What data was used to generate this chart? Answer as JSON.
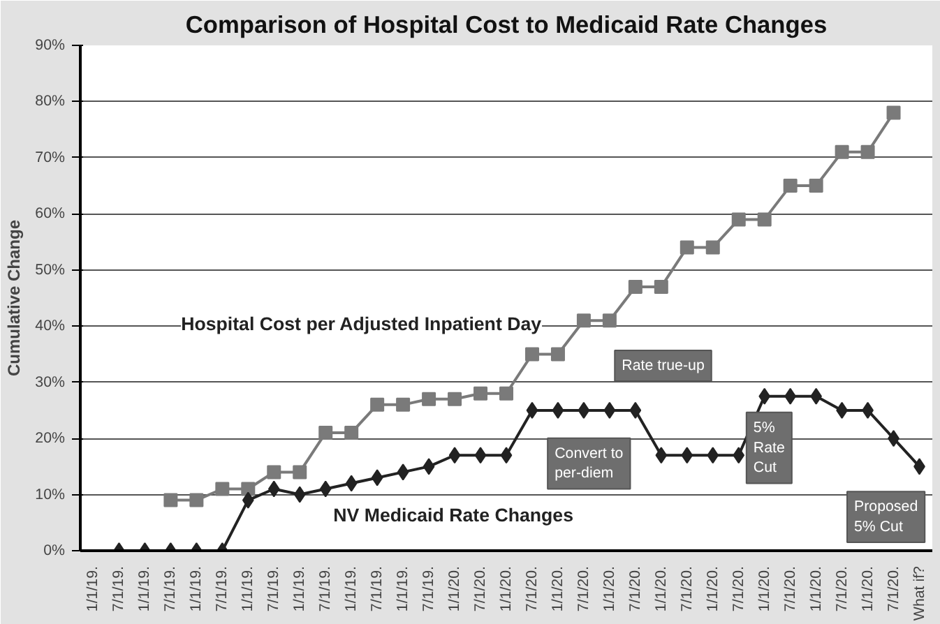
{
  "chart_data": {
    "type": "line",
    "title": "Comparison of Hospital Cost to Medicaid Rate Changes",
    "ylabel": "Cumulative Change",
    "categories": [
      "1/1/19.",
      "7/1/19.",
      "1/1/19.",
      "7/1/19.",
      "1/1/19.",
      "7/1/19.",
      "1/1/19.",
      "7/1/19.",
      "1/1/19.",
      "7/1/19.",
      "1/1/19.",
      "7/1/19.",
      "1/1/19.",
      "7/1/19.",
      "1/1/20.",
      "7/1/20.",
      "1/1/20.",
      "7/1/20.",
      "1/1/20.",
      "7/1/20.",
      "1/1/20.",
      "7/1/20.",
      "1/1/20.",
      "7/1/20.",
      "1/1/20.",
      "7/1/20.",
      "1/1/20.",
      "7/1/20.",
      "1/1/20.",
      "7/1/20.",
      "1/1/20.",
      "7/1/20.",
      "What if?"
    ],
    "series": [
      {
        "name": "Hospital Cost per Adjusted Inpatient Day",
        "color": "#7a7a7a",
        "marker": "square",
        "values": [
          null,
          null,
          null,
          9,
          9,
          11,
          11,
          14,
          14,
          21,
          21,
          26,
          26,
          27,
          27,
          28,
          28,
          35,
          35,
          41,
          41,
          47,
          47,
          54,
          54,
          59,
          59,
          65,
          65,
          71,
          71,
          78,
          null
        ]
      },
      {
        "name": "NV Medicaid Rate Changes",
        "color": "#222222",
        "marker": "diamond",
        "values": [
          null,
          0,
          0,
          0,
          0,
          0,
          9,
          11,
          10,
          11,
          12,
          13,
          14,
          15,
          17,
          17,
          17,
          25,
          25,
          25,
          25,
          25,
          17,
          17,
          17,
          17,
          27.5,
          27.5,
          27.5,
          25,
          25,
          20,
          15
        ]
      }
    ],
    "ylim": [
      0,
      90
    ],
    "yticks": [
      {
        "value": 0,
        "label": "0%"
      },
      {
        "value": 10,
        "label": "10%"
      },
      {
        "value": 20,
        "label": "20%"
      },
      {
        "value": 30,
        "label": "30%"
      },
      {
        "value": 40,
        "label": "40%"
      },
      {
        "value": 50,
        "label": "50%"
      },
      {
        "value": 60,
        "label": "60%"
      },
      {
        "value": 70,
        "label": "70%"
      },
      {
        "value": 80,
        "label": "80%"
      },
      {
        "value": 90,
        "label": "90%"
      }
    ],
    "grid": "y",
    "line_style": "solid",
    "annotations": [
      "Rate true-up",
      "Convert to per-diem",
      "5% Rate Cut",
      "Proposed 5% Cut"
    ]
  }
}
